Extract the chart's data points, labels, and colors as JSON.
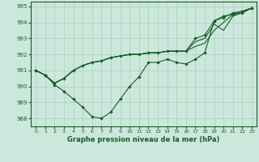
{
  "xlabel": "Graphe pression niveau de la mer (hPa)",
  "background_color": "#cce8dc",
  "line_color": "#1a5c28",
  "grid_color": "#aacfbc",
  "ylim": [
    987.5,
    995.3
  ],
  "yticks": [
    988,
    989,
    990,
    991,
    992,
    993,
    994,
    995
  ],
  "xlim": [
    -0.5,
    23.5
  ],
  "xticks": [
    0,
    1,
    2,
    3,
    4,
    5,
    6,
    7,
    8,
    9,
    10,
    11,
    12,
    13,
    14,
    15,
    16,
    17,
    18,
    19,
    20,
    21,
    22,
    23
  ],
  "series": [
    [
      991.0,
      990.7,
      990.1,
      989.7,
      989.2,
      988.7,
      988.1,
      988.0,
      988.4,
      989.2,
      990.0,
      990.6,
      991.5,
      991.5,
      991.7,
      991.5,
      991.4,
      991.7,
      992.1,
      994.1,
      994.4,
      994.5,
      994.6,
      994.9
    ],
    [
      991.0,
      990.7,
      990.2,
      990.5,
      991.0,
      991.3,
      991.5,
      991.6,
      991.8,
      991.9,
      992.0,
      992.0,
      992.1,
      992.1,
      992.2,
      992.2,
      992.2,
      993.0,
      993.2,
      994.1,
      994.3,
      994.6,
      994.7,
      994.9
    ],
    [
      991.0,
      990.7,
      990.2,
      990.5,
      991.0,
      991.3,
      991.5,
      991.6,
      991.8,
      991.9,
      992.0,
      992.0,
      992.1,
      992.1,
      992.2,
      992.2,
      992.2,
      992.8,
      993.0,
      993.9,
      993.5,
      994.4,
      994.6,
      994.9
    ],
    [
      991.0,
      990.7,
      990.2,
      990.5,
      991.0,
      991.3,
      991.5,
      991.6,
      991.8,
      991.9,
      992.0,
      992.0,
      992.1,
      992.1,
      992.2,
      992.2,
      992.2,
      992.5,
      992.7,
      993.5,
      994.0,
      994.5,
      994.7,
      994.9
    ]
  ],
  "markers": [
    true,
    true,
    false,
    false
  ]
}
